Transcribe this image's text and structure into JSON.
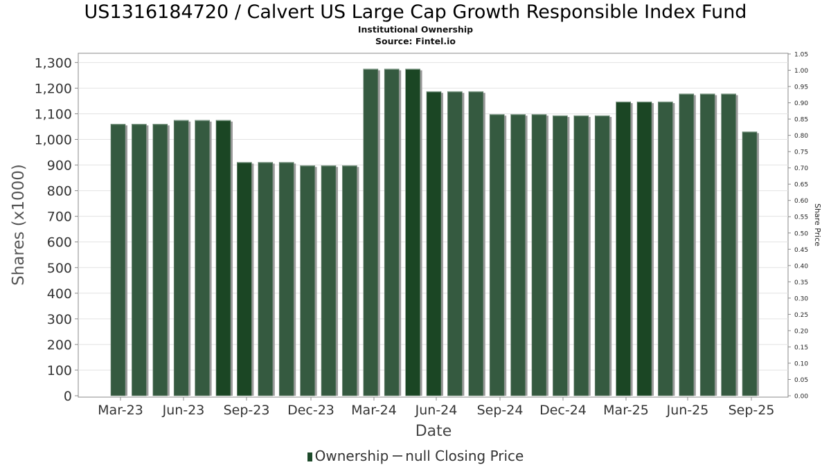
{
  "title": "US1316184720 / Calvert US Large Cap Growth Responsible Index Fund",
  "subtitle": "Institutional Ownership",
  "source": "Source: Fintel.io",
  "legend": {
    "ownership": "Ownership",
    "price": "null Closing Price"
  },
  "colors": {
    "bar_dark": "#1b4624",
    "bar_light": "#355a40",
    "shadow": "#9a9a9a",
    "grid": "#e2e2e2"
  },
  "chart_data": {
    "type": "bar",
    "title": "US1316184720 / Calvert US Large Cap Growth Responsible Index Fund",
    "xlabel": "Date",
    "ylabel": "Shares (x1000)",
    "y2label": "Share Price",
    "ylim": [
      0,
      1320
    ],
    "y2lim": [
      0,
      1.05
    ],
    "yticks": [
      "0",
      "100",
      "200",
      "300",
      "400",
      "500",
      "600",
      "700",
      "800",
      "900",
      "1,000",
      "1,100",
      "1,200",
      "1,300"
    ],
    "y2ticks": [
      "0.00",
      "0.05",
      "0.10",
      "0.15",
      "0.20",
      "0.25",
      "0.30",
      "0.35",
      "0.40",
      "0.45",
      "0.50",
      "0.55",
      "0.60",
      "0.65",
      "0.70",
      "0.75",
      "0.80",
      "0.85",
      "0.90",
      "0.95",
      "1.00",
      "1.05"
    ],
    "xticks": [
      "Mar-23",
      "Jun-23",
      "Sep-23",
      "Dec-23",
      "Mar-24",
      "Jun-24",
      "Sep-24",
      "Dec-24",
      "Mar-25",
      "Jun-25",
      "Sep-25"
    ],
    "grid": true,
    "legend_position": "bottom",
    "series": [
      {
        "name": "Ownership",
        "values": [
          1060,
          1060,
          1060,
          1075,
          1075,
          1075,
          911,
          911,
          911,
          898,
          898,
          898,
          1275,
          1275,
          1275,
          1187,
          1187,
          1187,
          1098,
          1098,
          1098,
          1093,
          1093,
          1093,
          1147,
          1147,
          1147,
          1178,
          1178,
          1178,
          1030
        ],
        "shade": [
          "l",
          "l",
          "l",
          "l",
          "l",
          "d",
          "d",
          "l",
          "l",
          "l",
          "l",
          "l",
          "l",
          "l",
          "d",
          "d",
          "l",
          "l",
          "l",
          "l",
          "l",
          "l",
          "l",
          "l",
          "d",
          "d",
          "l",
          "l",
          "l",
          "l",
          "l"
        ]
      }
    ]
  }
}
